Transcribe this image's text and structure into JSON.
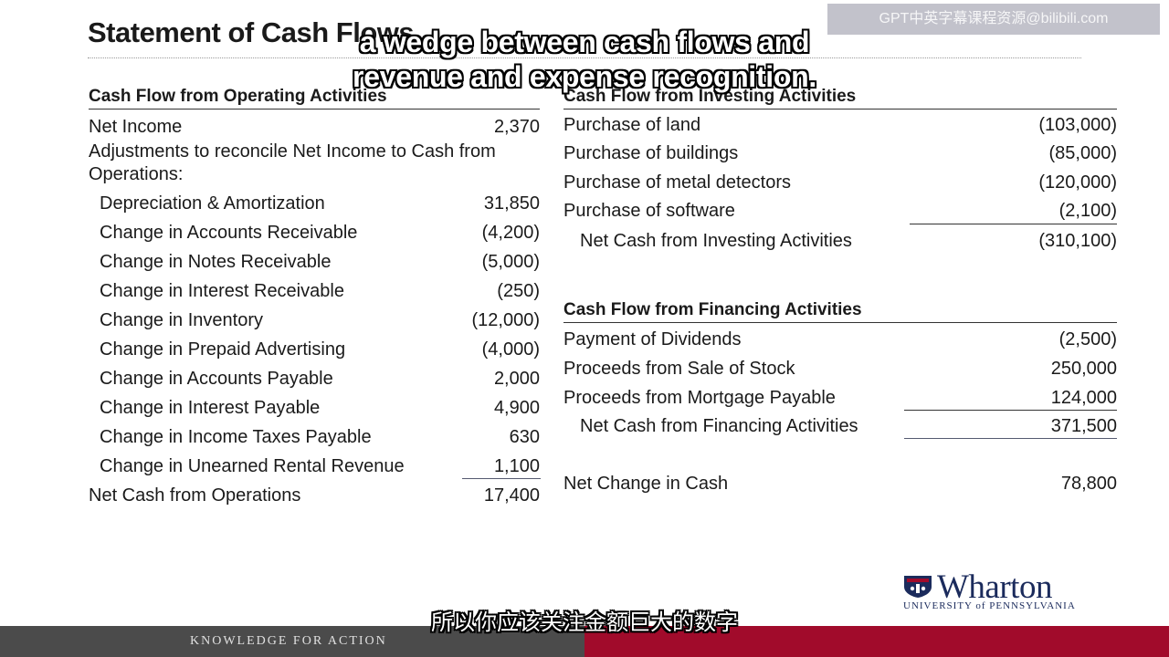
{
  "title": "Statement of Cash Flows",
  "watermark": "GPT中英字幕课程资源@bilibili.com",
  "subtitles": {
    "top_line1": "a wedge between cash flows and",
    "top_line2": "revenue and expense recognition.",
    "bottom": "所以你应该关注金额巨大的数字"
  },
  "operating": {
    "heading": "Cash Flow from Operating Activities",
    "net_income": {
      "label": "Net Income",
      "value": "2,370"
    },
    "adjustments_label": "Adjustments to reconcile Net Income to Cash from Operations:",
    "items": [
      {
        "label": "Depreciation & Amortization",
        "value": "31,850"
      },
      {
        "label": "Change in Accounts Receivable",
        "value": "(4,200)"
      },
      {
        "label": "Change in Notes Receivable",
        "value": "(5,000)"
      },
      {
        "label": "Change in Interest Receivable",
        "value": "(250)"
      },
      {
        "label": "Change in Inventory",
        "value": "(12,000)"
      },
      {
        "label": "Change in Prepaid Advertising",
        "value": "(4,000)"
      },
      {
        "label": "Change in Accounts Payable",
        "value": "2,000"
      },
      {
        "label": "Change in Interest Payable",
        "value": "4,900"
      },
      {
        "label": "Change in Income Taxes Payable",
        "value": "630"
      },
      {
        "label": "Change in Unearned Rental Revenue",
        "value": "1,100"
      }
    ],
    "total": {
      "label": "Net Cash from Operations",
      "value": "17,400"
    }
  },
  "investing": {
    "heading": "Cash Flow from Investing Activities",
    "items": [
      {
        "label": "Purchase of land",
        "value": "(103,000)"
      },
      {
        "label": "Purchase of buildings",
        "value": "(85,000)"
      },
      {
        "label": "Purchase of metal detectors",
        "value": "(120,000)"
      },
      {
        "label": "Purchase of software",
        "value": "(2,100)"
      }
    ],
    "total": {
      "label": "Net Cash from Investing Activities",
      "value": "(310,100)"
    }
  },
  "financing": {
    "heading": "Cash Flow from Financing Activities",
    "items": [
      {
        "label": "Payment of Dividends",
        "value": "(2,500)"
      },
      {
        "label": "Proceeds from Sale of Stock",
        "value": "250,000"
      },
      {
        "label": "Proceeds from Mortgage Payable",
        "value": "124,000"
      }
    ],
    "total": {
      "label": "Net Cash from Financing Activities",
      "value": "371,500"
    }
  },
  "net_change": {
    "label": "Net Change in Cash",
    "value": "78,800"
  },
  "logo": {
    "name": "Wharton",
    "university": "UNIVERSITY of PENNSYLVANIA"
  },
  "footer": {
    "tagline": "KNOWLEDGE FOR ACTION"
  },
  "colors": {
    "footer_gray": "#4b4b4b",
    "footer_red": "#a10b2b",
    "logo_navy": "#1b2b5c"
  }
}
